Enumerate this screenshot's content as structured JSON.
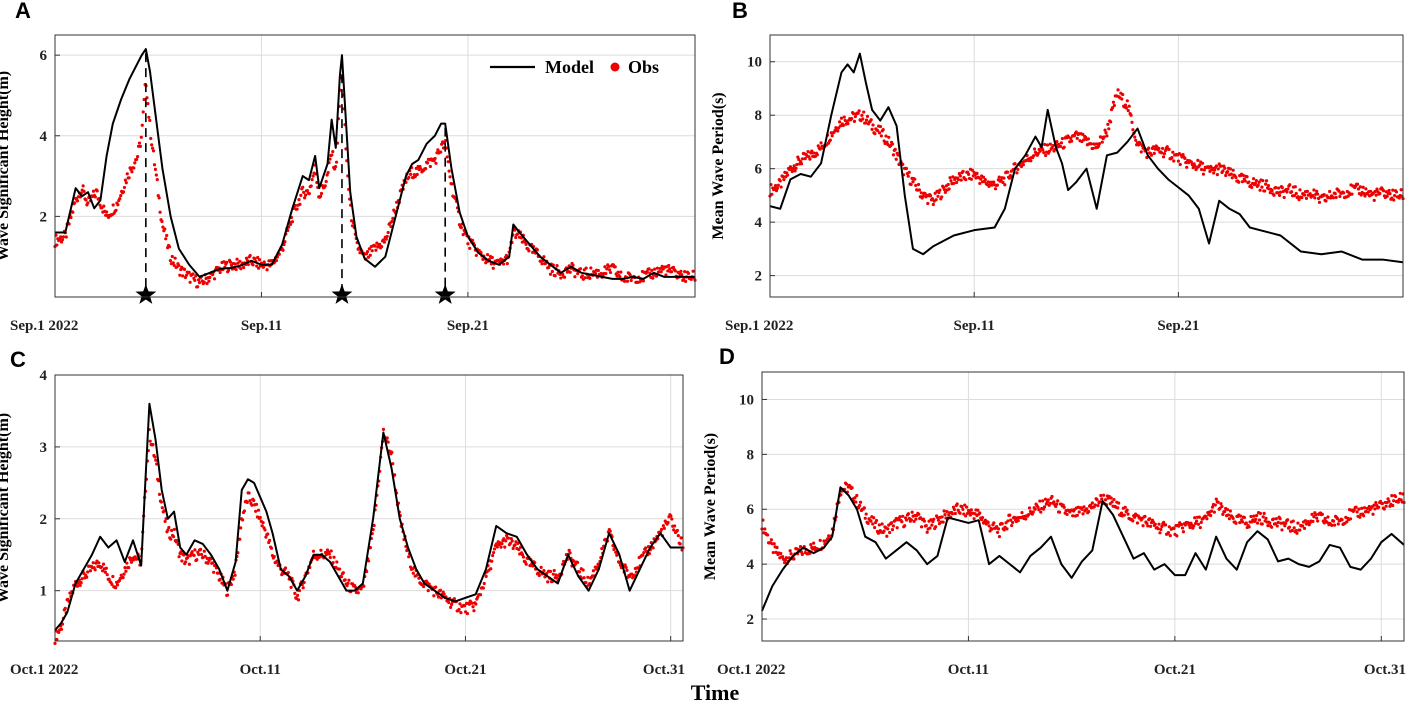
{
  "colors": {
    "model": "#000000",
    "obs": "#ee0000",
    "grid": "#dcdcdc",
    "axis": "#333333"
  },
  "common_xlabel": "Time",
  "chart_data": [
    {
      "panel": "A",
      "type": "line",
      "ylabel": "Wave Significant Height(m)",
      "xlim": [
        0,
        31
      ],
      "ylim": [
        0,
        6.5
      ],
      "yticks": [
        2,
        4,
        6
      ],
      "xticks": [
        {
          "v": 0,
          "label": "Sep.1 2022"
        },
        {
          "v": 10,
          "label": "Sep.11"
        },
        {
          "v": 20,
          "label": "Sep.21"
        }
      ],
      "legend": {
        "model": "Model",
        "obs": "Obs",
        "position": "top-right"
      },
      "stars": [
        4.4,
        13.9,
        18.9
      ],
      "model": {
        "name": "Model",
        "x": [
          0,
          0.5,
          1,
          1.3,
          1.6,
          1.9,
          2.2,
          2.5,
          2.8,
          3.2,
          3.6,
          4,
          4.2,
          4.4,
          4.6,
          4.9,
          5.2,
          5.6,
          6,
          6.5,
          7,
          7.5,
          8,
          8.5,
          9,
          9.5,
          10,
          10.5,
          11,
          11.5,
          12,
          12.3,
          12.6,
          12.8,
          13,
          13.2,
          13.4,
          13.6,
          13.8,
          13.9,
          14.1,
          14.3,
          14.6,
          15,
          15.5,
          16,
          16.5,
          17,
          17.3,
          17.6,
          18,
          18.4,
          18.7,
          18.9,
          19.2,
          19.6,
          20,
          20.5,
          21,
          21.5,
          22,
          22.2,
          22.5,
          23,
          23.5,
          24,
          24.5,
          25,
          25.5,
          26,
          26.5,
          27,
          27.5,
          28,
          28.5,
          29,
          29.5,
          30,
          30.5,
          31
        ],
        "y": [
          1.6,
          1.6,
          2.7,
          2.5,
          2.6,
          2.2,
          2.4,
          3.5,
          4.3,
          4.9,
          5.4,
          5.8,
          6.0,
          6.15,
          5.6,
          4.4,
          3.2,
          2.0,
          1.2,
          0.8,
          0.5,
          0.6,
          0.7,
          0.72,
          0.78,
          0.9,
          0.8,
          0.8,
          1.3,
          2.2,
          3.0,
          2.9,
          3.5,
          2.7,
          3.0,
          3.3,
          4.4,
          3.7,
          5.5,
          6.0,
          4.3,
          2.6,
          1.5,
          0.95,
          0.75,
          1.0,
          2.0,
          3.0,
          3.3,
          3.4,
          3.8,
          4.0,
          4.3,
          4.3,
          3.2,
          2.1,
          1.5,
          1.1,
          0.9,
          0.8,
          1.0,
          1.8,
          1.6,
          1.3,
          1.0,
          0.8,
          0.6,
          0.75,
          0.6,
          0.55,
          0.5,
          0.45,
          0.45,
          0.5,
          0.45,
          0.6,
          0.5,
          0.5,
          0.5,
          0.5
        ]
      },
      "obs": {
        "name": "Obs",
        "x": [
          0,
          0.5,
          1,
          1.3,
          1.6,
          2,
          2.5,
          3,
          3.5,
          4,
          4.2,
          4.4,
          4.6,
          4.9,
          5.2,
          5.6,
          6,
          6.5,
          7,
          7.5,
          8,
          8.5,
          9,
          9.5,
          10,
          10.5,
          11,
          11.5,
          12,
          12.3,
          12.6,
          12.8,
          13,
          13.2,
          13.4,
          13.6,
          13.8,
          13.9,
          14.1,
          14.3,
          14.6,
          15,
          15.5,
          16,
          16.5,
          17,
          17.3,
          17.6,
          18,
          18.4,
          18.7,
          18.9,
          19.2,
          19.6,
          20,
          20.5,
          21,
          21.5,
          22,
          22.2,
          22.5,
          23,
          23.5,
          24,
          24.5,
          25,
          25.5,
          26,
          26.5,
          27,
          27.5,
          28,
          28.5,
          29,
          29.5,
          30,
          30.5,
          31
        ],
        "y": [
          1.4,
          1.5,
          2.4,
          2.7,
          2.3,
          2.6,
          2.0,
          2.3,
          3.0,
          3.5,
          4.0,
          5.4,
          4.2,
          3.0,
          1.8,
          1.0,
          0.7,
          0.5,
          0.35,
          0.5,
          0.7,
          0.8,
          0.8,
          0.9,
          0.8,
          0.8,
          1.2,
          2.0,
          2.6,
          2.6,
          3.2,
          2.5,
          2.7,
          3.0,
          3.6,
          3.1,
          5.0,
          5.6,
          3.6,
          2.2,
          1.3,
          0.95,
          1.2,
          1.4,
          2.2,
          2.9,
          3.1,
          3.1,
          3.3,
          3.4,
          3.7,
          3.8,
          2.8,
          1.9,
          1.4,
          1.1,
          0.9,
          0.8,
          1.0,
          1.6,
          1.5,
          1.2,
          1.0,
          0.7,
          0.6,
          0.7,
          0.55,
          0.6,
          0.6,
          0.7,
          0.45,
          0.5,
          0.5,
          0.6,
          0.7,
          0.6,
          0.5,
          0.5
        ]
      }
    },
    {
      "panel": "B",
      "type": "line",
      "ylabel": "Mean Wave Period(s)",
      "xlim": [
        0,
        31
      ],
      "ylim": [
        1.2,
        11
      ],
      "yticks": [
        2,
        4,
        6,
        8,
        10
      ],
      "xticks": [
        {
          "v": 0,
          "label": "Sep.1 2022"
        },
        {
          "v": 10,
          "label": "Sep.11"
        },
        {
          "v": 20,
          "label": "Sep.21"
        }
      ],
      "model": {
        "name": "Model",
        "x": [
          0,
          0.5,
          1,
          1.5,
          2,
          2.5,
          3,
          3.5,
          3.8,
          4.1,
          4.4,
          4.7,
          5,
          5.4,
          5.8,
          6.2,
          6.6,
          7,
          7.5,
          8,
          9,
          10,
          11,
          11.5,
          12,
          12.5,
          13,
          13.3,
          13.6,
          14,
          14.3,
          14.6,
          15,
          15.5,
          16,
          16.5,
          17,
          17.5,
          18,
          18.5,
          19,
          19.5,
          20,
          20.5,
          21,
          21.5,
          22,
          22.5,
          23,
          23.5,
          24,
          25,
          26,
          27,
          28,
          29,
          30,
          31
        ],
        "y": [
          4.6,
          4.5,
          5.6,
          5.8,
          5.7,
          6.2,
          8.0,
          9.6,
          9.9,
          9.6,
          10.3,
          9.2,
          8.2,
          7.8,
          8.3,
          7.6,
          5.0,
          3.0,
          2.8,
          3.1,
          3.5,
          3.7,
          3.8,
          4.5,
          6.0,
          6.5,
          7.2,
          6.8,
          8.2,
          6.8,
          6.2,
          5.2,
          5.5,
          6.0,
          4.5,
          6.5,
          6.6,
          7.0,
          7.5,
          6.5,
          6.0,
          5.6,
          5.3,
          5.0,
          4.5,
          3.2,
          4.8,
          4.5,
          4.3,
          3.8,
          3.7,
          3.5,
          2.9,
          2.8,
          2.9,
          2.6,
          2.6,
          2.5
        ]
      },
      "obs": {
        "name": "Obs",
        "x": [
          0,
          0.5,
          1,
          1.5,
          2,
          2.5,
          3,
          3.5,
          4,
          4.5,
          5,
          5.5,
          6,
          6.5,
          7,
          7.5,
          8,
          8.5,
          9,
          9.5,
          10,
          10.5,
          11,
          11.5,
          12,
          12.5,
          13,
          13.5,
          14,
          14.5,
          15,
          15.5,
          16,
          16.5,
          17,
          17.5,
          18,
          18.5,
          19,
          19.5,
          20,
          20.5,
          21,
          21.5,
          22,
          22.5,
          23,
          23.5,
          24,
          24.5,
          25,
          25.5,
          26,
          26.5,
          27,
          27.5,
          28,
          28.5,
          29,
          29.5,
          30,
          30.5,
          31
        ],
        "y": [
          5.2,
          5.4,
          6.0,
          6.3,
          6.5,
          6.8,
          7.3,
          7.8,
          7.9,
          8.0,
          7.6,
          7.3,
          6.8,
          6.0,
          5.5,
          5.0,
          4.8,
          5.2,
          5.6,
          5.7,
          5.8,
          5.5,
          5.4,
          5.6,
          6.0,
          6.3,
          6.6,
          6.7,
          6.8,
          7.0,
          7.2,
          7.0,
          6.8,
          7.4,
          8.8,
          8.4,
          6.9,
          6.6,
          6.7,
          6.6,
          6.4,
          6.2,
          6.1,
          5.9,
          6.0,
          5.8,
          5.6,
          5.5,
          5.4,
          5.3,
          5.1,
          5.2,
          5.0,
          5.1,
          4.8,
          5.0,
          5.1,
          5.2,
          5.2,
          5.0,
          5.1,
          5.0,
          5.0
        ]
      }
    },
    {
      "panel": "C",
      "type": "line",
      "ylabel": "Wave Significant Height(m)",
      "xlim": [
        0,
        30.6
      ],
      "ylim": [
        0.3,
        4
      ],
      "yticks": [
        1,
        2,
        3,
        4
      ],
      "xticks": [
        {
          "v": 0,
          "label": "Oct.1 2022"
        },
        {
          "v": 10,
          "label": "Oct.11"
        },
        {
          "v": 20,
          "label": "Oct.21"
        },
        {
          "v": 30,
          "label": "Oct.31"
        }
      ],
      "model": {
        "name": "Model",
        "x": [
          0,
          0.3,
          0.6,
          1,
          1.4,
          1.8,
          2.2,
          2.6,
          3,
          3.4,
          3.8,
          4.2,
          4.4,
          4.6,
          4.9,
          5.2,
          5.5,
          5.8,
          6.1,
          6.4,
          6.8,
          7.2,
          7.6,
          8,
          8.4,
          8.8,
          9.1,
          9.4,
          9.7,
          10,
          10.3,
          10.6,
          11,
          11.4,
          11.8,
          12.2,
          12.6,
          13,
          13.4,
          13.8,
          14.2,
          14.6,
          15,
          15.5,
          16,
          16.4,
          16.8,
          17.2,
          17.6,
          18,
          18.5,
          19,
          19.5,
          20,
          20.5,
          21,
          21.5,
          22,
          22.5,
          23,
          23.5,
          24,
          24.5,
          25,
          25.5,
          26,
          26.5,
          27,
          27.5,
          28,
          28.5,
          29,
          29.5,
          30,
          30.6
        ],
        "y": [
          0.45,
          0.55,
          0.7,
          1.1,
          1.3,
          1.5,
          1.75,
          1.6,
          1.7,
          1.4,
          1.7,
          1.35,
          2.5,
          3.6,
          3.1,
          2.4,
          2.0,
          2.1,
          1.6,
          1.5,
          1.7,
          1.65,
          1.5,
          1.3,
          1.0,
          1.4,
          2.4,
          2.55,
          2.5,
          2.3,
          2.1,
          1.8,
          1.3,
          1.2,
          1.0,
          1.2,
          1.5,
          1.5,
          1.4,
          1.2,
          1.0,
          1.0,
          1.1,
          2.0,
          3.2,
          2.7,
          2.0,
          1.6,
          1.3,
          1.1,
          1.0,
          0.9,
          0.85,
          0.9,
          0.95,
          1.3,
          1.9,
          1.8,
          1.75,
          1.5,
          1.3,
          1.2,
          1.1,
          1.5,
          1.2,
          1.0,
          1.3,
          1.8,
          1.5,
          1.0,
          1.3,
          1.6,
          1.8,
          1.6,
          1.6
        ]
      },
      "obs": {
        "name": "Obs",
        "x": [
          0,
          0.3,
          0.6,
          1,
          1.4,
          1.8,
          2.2,
          2.6,
          3,
          3.4,
          3.8,
          4.2,
          4.4,
          4.6,
          4.9,
          5.2,
          5.5,
          5.8,
          6.1,
          6.4,
          6.8,
          7.2,
          7.6,
          8,
          8.4,
          8.8,
          9.1,
          9.4,
          9.7,
          10,
          10.3,
          10.6,
          11,
          11.4,
          11.8,
          12.2,
          12.6,
          13,
          13.4,
          13.8,
          14.2,
          14.6,
          15,
          15.5,
          16,
          16.4,
          16.8,
          17.2,
          17.6,
          18,
          18.5,
          19,
          19.5,
          20,
          20.5,
          21,
          21.5,
          22,
          22.5,
          23,
          23.5,
          24,
          24.5,
          25,
          25.5,
          26,
          26.5,
          27,
          27.5,
          28,
          28.5,
          29,
          29.5,
          30,
          30.6
        ],
        "y": [
          0.35,
          0.5,
          0.8,
          1.1,
          1.2,
          1.3,
          1.4,
          1.2,
          1.1,
          1.3,
          1.5,
          1.4,
          2.4,
          3.2,
          2.8,
          2.2,
          1.8,
          1.8,
          1.5,
          1.4,
          1.5,
          1.5,
          1.4,
          1.2,
          1.0,
          1.3,
          2.0,
          2.3,
          2.2,
          2.0,
          1.8,
          1.5,
          1.3,
          1.2,
          0.9,
          1.2,
          1.5,
          1.5,
          1.5,
          1.3,
          1.1,
          1.0,
          1.0,
          1.8,
          3.2,
          2.9,
          2.0,
          1.5,
          1.2,
          1.1,
          1.0,
          0.9,
          0.8,
          0.75,
          0.8,
          1.2,
          1.6,
          1.7,
          1.6,
          1.4,
          1.3,
          1.2,
          1.2,
          1.5,
          1.3,
          1.1,
          1.4,
          1.8,
          1.4,
          1.2,
          1.4,
          1.6,
          1.8,
          2.0,
          1.6
        ]
      }
    },
    {
      "panel": "D",
      "type": "line",
      "ylabel": "Mean Wave Period(s)",
      "xlim": [
        0,
        31.1
      ],
      "ylim": [
        1.2,
        11
      ],
      "yticks": [
        2,
        4,
        6,
        8,
        10
      ],
      "xticks": [
        {
          "v": 0,
          "label": "Oct.1 2022"
        },
        {
          "v": 10,
          "label": "Oct.11"
        },
        {
          "v": 20,
          "label": "Oct.21"
        },
        {
          "v": 30,
          "label": "Oct.31"
        }
      ],
      "model": {
        "name": "Model",
        "x": [
          0,
          0.5,
          1,
          1.5,
          2,
          2.5,
          3,
          3.4,
          3.8,
          4.2,
          4.6,
          5,
          5.5,
          6,
          6.5,
          7,
          7.5,
          8,
          8.5,
          9,
          9.5,
          10,
          10.5,
          11,
          11.5,
          12,
          12.5,
          13,
          13.5,
          14,
          14.5,
          15,
          15.5,
          16,
          16.5,
          17,
          17.5,
          18,
          18.5,
          19,
          19.5,
          20,
          20.5,
          21,
          21.5,
          22,
          22.5,
          23,
          23.5,
          24,
          24.5,
          25,
          25.5,
          26,
          26.5,
          27,
          27.5,
          28,
          28.5,
          29,
          29.5,
          30,
          30.5,
          31.1
        ],
        "y": [
          2.3,
          3.2,
          3.8,
          4.3,
          4.6,
          4.4,
          4.6,
          5.0,
          6.8,
          6.5,
          6.0,
          5.0,
          4.8,
          4.2,
          4.5,
          4.8,
          4.5,
          4.0,
          4.3,
          5.7,
          5.6,
          5.5,
          5.6,
          4.0,
          4.3,
          4.0,
          3.7,
          4.3,
          4.6,
          5.0,
          4.0,
          3.5,
          4.1,
          4.5,
          6.3,
          5.8,
          5.0,
          4.2,
          4.4,
          3.8,
          4.0,
          3.6,
          3.6,
          4.4,
          3.8,
          5.0,
          4.2,
          3.8,
          4.8,
          5.2,
          4.9,
          4.1,
          4.2,
          4.0,
          3.9,
          4.1,
          4.7,
          4.6,
          3.9,
          3.8,
          4.2,
          4.8,
          5.1,
          4.7
        ]
      },
      "obs": {
        "name": "Obs",
        "x": [
          0,
          0.5,
          1,
          1.5,
          2,
          2.5,
          3,
          3.4,
          3.8,
          4.2,
          4.6,
          5,
          5.5,
          6,
          6.5,
          7,
          7.5,
          8,
          8.5,
          9,
          9.5,
          10,
          10.5,
          11,
          11.5,
          12,
          12.5,
          13,
          13.5,
          14,
          14.5,
          15,
          15.5,
          16,
          16.5,
          17,
          17.5,
          18,
          18.5,
          19,
          19.5,
          20,
          20.5,
          21,
          21.5,
          22,
          22.5,
          23,
          23.5,
          24,
          24.5,
          25,
          25.5,
          26,
          26.5,
          27,
          27.5,
          28,
          28.5,
          29,
          29.5,
          30,
          30.5,
          31.1
        ],
        "y": [
          5.5,
          4.6,
          4.2,
          4.3,
          4.5,
          4.6,
          4.8,
          5.2,
          6.7,
          6.8,
          6.3,
          5.8,
          5.4,
          5.2,
          5.5,
          5.6,
          5.8,
          5.3,
          5.6,
          5.8,
          6.0,
          5.9,
          5.8,
          5.4,
          5.2,
          5.6,
          5.7,
          5.9,
          6.1,
          6.3,
          6.0,
          5.8,
          5.9,
          6.1,
          6.4,
          6.2,
          5.9,
          5.7,
          5.6,
          5.4,
          5.3,
          5.2,
          5.4,
          5.5,
          5.6,
          6.2,
          5.8,
          5.6,
          5.5,
          5.7,
          5.6,
          5.5,
          5.4,
          5.3,
          5.6,
          5.7,
          5.5,
          5.6,
          5.8,
          5.9,
          6.0,
          6.1,
          6.3,
          6.4
        ]
      }
    }
  ]
}
